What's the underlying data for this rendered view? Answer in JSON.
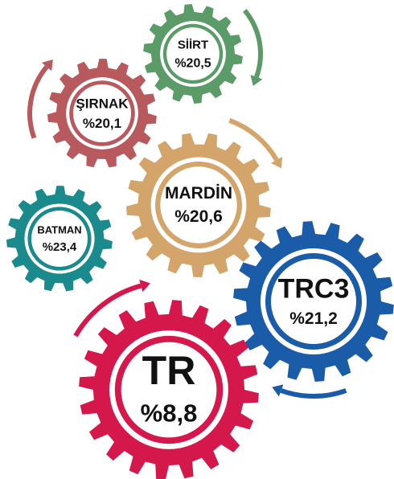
{
  "nodes": [
    {
      "name": "SİİRT",
      "value": "%20,5",
      "color": "#5b9b67"
    },
    {
      "name": "ŞIRNAK",
      "value": "%20,1",
      "color": "#b8595e"
    },
    {
      "name": "MARDİN",
      "value": "%20,6",
      "color": "#d4a56a"
    },
    {
      "name": "BATMAN",
      "value": "%23,4",
      "color": "#1b8a8c"
    },
    {
      "name": "TRC3",
      "value": "%21,2",
      "color": "#1b5ca8"
    },
    {
      "name": "TR",
      "value": "%8,8",
      "color": "#d4184b"
    }
  ]
}
